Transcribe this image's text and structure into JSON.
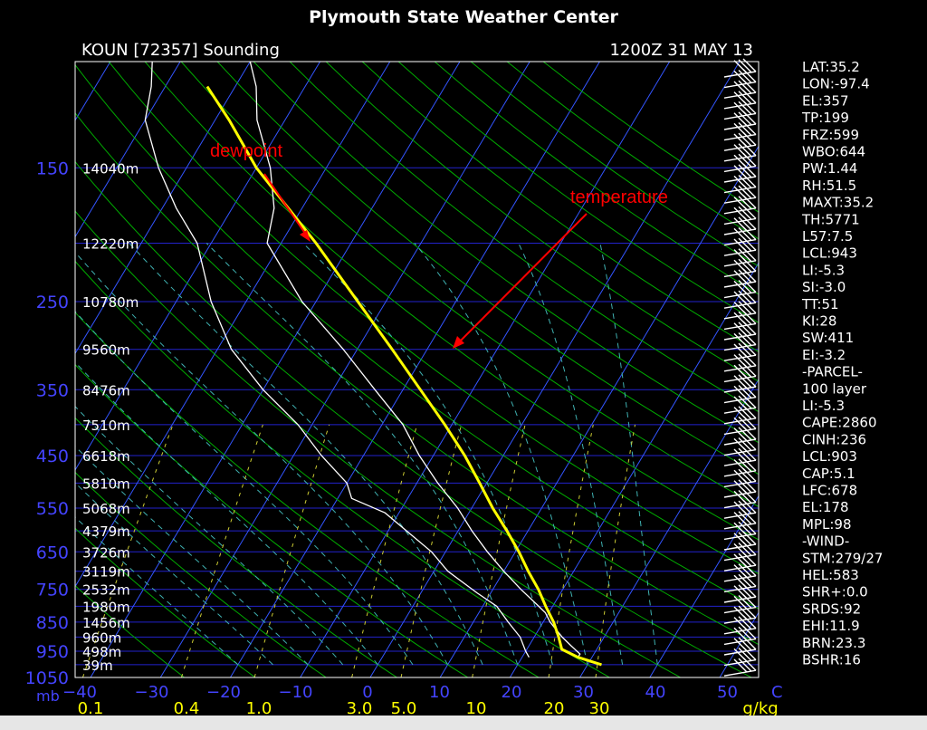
{
  "header": {
    "title": "Plymouth State Weather Center",
    "station": "KOUN [72357] Sounding",
    "datetime": "1200Z 31 MAY 13"
  },
  "colors": {
    "background": "#000000",
    "isobar": "#2222cc",
    "isotherm": "#3355ff",
    "dry_adiabat": "#00aa00",
    "moist_adiabat": "#3fb0b0",
    "mixing_ratio": "#cccc33",
    "sounding": "#ffffff",
    "parcel": "#ffff00",
    "annotation": "#ff0000",
    "axis_text_blue": "#4444ff",
    "mixing_text": "#ffff00",
    "indices_text": "#ffffff"
  },
  "annotations": {
    "dewpoint": "dewpoint",
    "temperature": "temperature"
  },
  "chart_data": {
    "type": "line",
    "title": "Plymouth State Weather Center",
    "x_axis": {
      "label": "C",
      "ticks": [
        -40,
        -30,
        -20,
        -10,
        0,
        10,
        20,
        30,
        40,
        50
      ],
      "range": [
        -40,
        50
      ],
      "skewed": true
    },
    "y_axis": {
      "label": "mb",
      "scale": "log-pressure",
      "ticks": [
        150,
        250,
        350,
        450,
        550,
        650,
        750,
        850,
        950,
        1050
      ],
      "range": [
        100,
        1050
      ]
    },
    "height_labels": [
      {
        "p": 150,
        "label": "14040m"
      },
      {
        "p": 200,
        "label": "12220m"
      },
      {
        "p": 250,
        "label": "10780m"
      },
      {
        "p": 300,
        "label": "9560m"
      },
      {
        "p": 350,
        "label": "8476m"
      },
      {
        "p": 400,
        "label": "7510m"
      },
      {
        "p": 450,
        "label": "6618m"
      },
      {
        "p": 500,
        "label": "5810m"
      },
      {
        "p": 550,
        "label": "5068m"
      },
      {
        "p": 600,
        "label": "4379m"
      },
      {
        "p": 650,
        "label": "3726m"
      },
      {
        "p": 700,
        "label": "3119m"
      },
      {
        "p": 750,
        "label": "2532m"
      },
      {
        "p": 800,
        "label": "1980m"
      },
      {
        "p": 850,
        "label": "1456m"
      },
      {
        "p": 900,
        "label": "960m"
      },
      {
        "p": 950,
        "label": "498m"
      },
      {
        "p": 1000,
        "label": "39m"
      }
    ],
    "mixing_ratio_labels": [
      "0.1",
      "0.4",
      "1.0",
      "3.0",
      "5.0",
      "10",
      "20",
      "30"
    ],
    "mixing_ratio_unit": "g/kg",
    "mixing_ratio_values": [
      0.1,
      0.4,
      1.0,
      3.0,
      5.0,
      10,
      20,
      30
    ],
    "series": [
      {
        "key": "temperature",
        "color": "#ffffff",
        "points": [
          {
            "p": 972,
            "t": 28
          },
          {
            "p": 960,
            "t": 28
          },
          {
            "p": 930,
            "t": 26
          },
          {
            "p": 900,
            "t": 24
          },
          {
            "p": 850,
            "t": 21
          },
          {
            "p": 820,
            "t": 19.5
          },
          {
            "p": 800,
            "t": 18
          },
          {
            "p": 750,
            "t": 14
          },
          {
            "p": 700,
            "t": 10
          },
          {
            "p": 650,
            "t": 6
          },
          {
            "p": 600,
            "t": 2
          },
          {
            "p": 550,
            "t": -2
          },
          {
            "p": 500,
            "t": -7
          },
          {
            "p": 450,
            "t": -12
          },
          {
            "p": 400,
            "t": -17
          },
          {
            "p": 350,
            "t": -24
          },
          {
            "p": 300,
            "t": -32
          },
          {
            "p": 250,
            "t": -42
          },
          {
            "p": 200,
            "t": -52
          },
          {
            "p": 175,
            "t": -54
          },
          {
            "p": 150,
            "t": -58
          },
          {
            "p": 125,
            "t": -64
          },
          {
            "p": 110,
            "t": -67
          },
          {
            "p": 100,
            "t": -70
          }
        ]
      },
      {
        "key": "dewpoint",
        "color": "#ffffff",
        "points": [
          {
            "p": 972,
            "t": 21
          },
          {
            "p": 950,
            "t": 20
          },
          {
            "p": 900,
            "t": 18
          },
          {
            "p": 850,
            "t": 15
          },
          {
            "p": 800,
            "t": 12
          },
          {
            "p": 760,
            "t": 8
          },
          {
            "p": 700,
            "t": 2
          },
          {
            "p": 650,
            "t": -2
          },
          {
            "p": 560,
            "t": -12
          },
          {
            "p": 530,
            "t": -18
          },
          {
            "p": 500,
            "t": -20
          },
          {
            "p": 450,
            "t": -26
          },
          {
            "p": 400,
            "t": -32
          },
          {
            "p": 350,
            "t": -40
          },
          {
            "p": 300,
            "t": -48
          },
          {
            "p": 250,
            "t": -55
          },
          {
            "p": 200,
            "t": -62
          },
          {
            "p": 175,
            "t": -68
          },
          {
            "p": 150,
            "t": -74
          },
          {
            "p": 125,
            "t": -80
          },
          {
            "p": 110,
            "t": -82
          },
          {
            "p": 100,
            "t": -84
          }
        ]
      },
      {
        "key": "parcel",
        "color": "#ffff00",
        "points": [
          {
            "p": 1000,
            "t": 32
          },
          {
            "p": 972,
            "t": 28
          },
          {
            "p": 943,
            "t": 25
          },
          {
            "p": 900,
            "t": 23.5
          },
          {
            "p": 850,
            "t": 21.5
          },
          {
            "p": 800,
            "t": 19
          },
          {
            "p": 750,
            "t": 16.5
          },
          {
            "p": 700,
            "t": 13.5
          },
          {
            "p": 650,
            "t": 10.5
          },
          {
            "p": 600,
            "t": 7
          },
          {
            "p": 550,
            "t": 3
          },
          {
            "p": 500,
            "t": -1
          },
          {
            "p": 450,
            "t": -5.5
          },
          {
            "p": 400,
            "t": -11
          },
          {
            "p": 350,
            "t": -17.5
          },
          {
            "p": 300,
            "t": -25
          },
          {
            "p": 250,
            "t": -34
          },
          {
            "p": 200,
            "t": -45
          },
          {
            "p": 150,
            "t": -60
          },
          {
            "p": 125,
            "t": -68
          },
          {
            "p": 110,
            "t": -74
          }
        ]
      }
    ],
    "legend": "none",
    "grid": true
  },
  "indices": [
    "LAT:35.2",
    "LON:-97.4",
    "EL:357",
    "TP:199",
    "FRZ:599",
    "WBO:644",
    "PW:1.44",
    "RH:51.5",
    "MAXT:35.2",
    "TH:5771",
    "L57:7.5",
    "LCL:943",
    "LI:-5.3",
    "SI:-3.0",
    "TT:51",
    "KI:28",
    "SW:411",
    "EI:-3.2",
    "-PARCEL-",
    "100 layer",
    "LI:-5.3",
    "CAPE:2860",
    "CINH:236",
    "LCL:903",
    "CAP:5.1",
    "LFC:678",
    "EL:178",
    "MPL:98",
    "-WIND-",
    "STM:279/27",
    "HEL:583",
    "SHR+:0.0",
    "SRDS:92",
    "EHI:11.9",
    "BRN:23.3",
    "BSHR:16"
  ]
}
